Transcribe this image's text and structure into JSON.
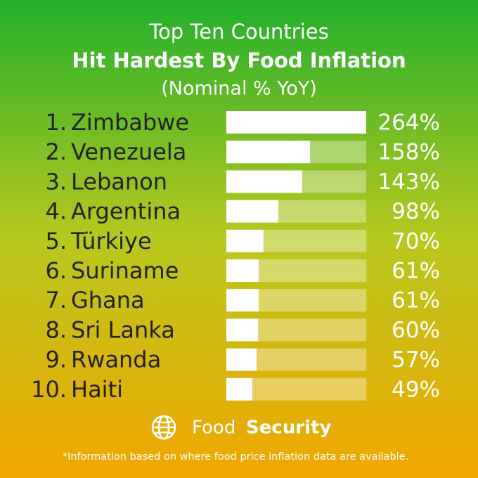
{
  "chart_data": {
    "type": "bar",
    "orientation": "horizontal",
    "title": [
      "Top Ten Countries",
      "Hit Hardest By Food Inflation"
    ],
    "subtitle": "(Nominal % YoY)",
    "ranks": [
      "1.",
      "2.",
      "3.",
      "4.",
      "5.",
      "6.",
      "7.",
      "8.",
      "9.",
      "10."
    ],
    "categories": [
      "Zimbabwe",
      "Venezuela",
      "Lebanon",
      "Argentina",
      "Türkiye",
      "Suriname",
      "Ghana",
      "Sri Lanka",
      "Rwanda",
      "Haiti"
    ],
    "values": [
      264,
      158,
      143,
      98,
      70,
      61,
      61,
      60,
      57,
      49
    ],
    "value_labels": [
      "264%",
      "158%",
      "143%",
      "98%",
      "70%",
      "61%",
      "61%",
      "60%",
      "57%",
      "49%"
    ],
    "xlim": [
      0,
      264
    ],
    "color": "#ffffff",
    "brand": [
      "Food",
      "Security"
    ],
    "note": "*Information based on where food price inflation data are available."
  }
}
